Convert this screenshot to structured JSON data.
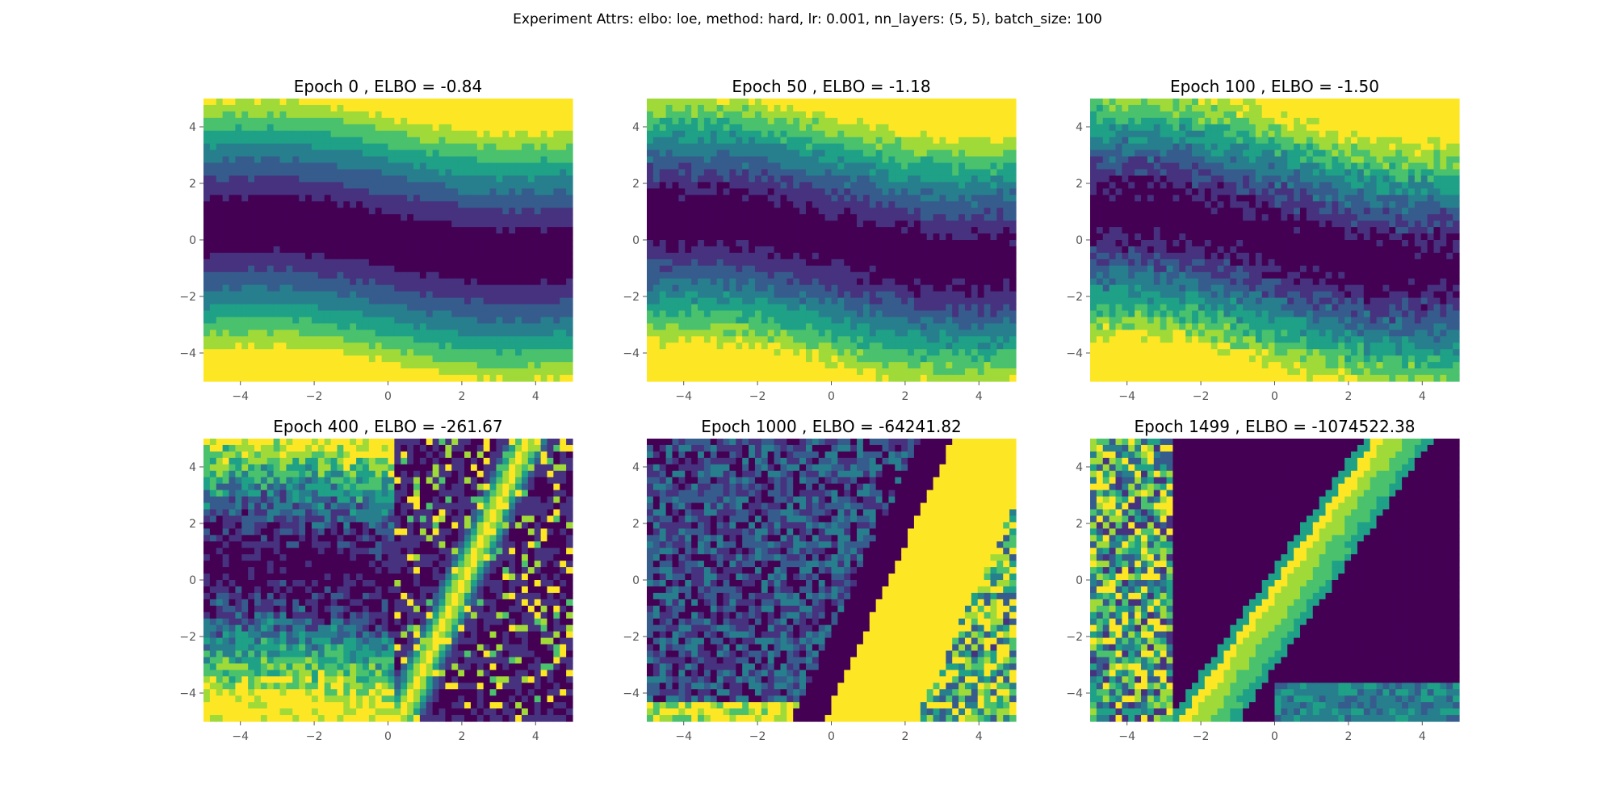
{
  "figure": {
    "suptitle": "Experiment Attrs: elbo: loe, method: hard, lr: 0.001, nn_layers: (5, 5), batch_size: 100"
  },
  "colormap": {
    "name": "viridis",
    "colors": [
      "#440154",
      "#46327e",
      "#365c8d",
      "#277f8e",
      "#1fa187",
      "#4ac16d",
      "#a0da39",
      "#fde725"
    ]
  },
  "chart_data": [
    {
      "type": "contour",
      "title": "Epoch 0 , ELBO = -0.84",
      "xlim": [
        -5,
        5
      ],
      "ylim": [
        -5,
        5
      ],
      "xticks": [
        -4,
        -2,
        0,
        2,
        4
      ],
      "yticks": [
        -4,
        -2,
        0,
        2,
        4
      ],
      "xticklabels": [
        "−4",
        "−2",
        "0",
        "2",
        "4"
      ],
      "yticklabels": [
        "−4",
        "−2",
        "0",
        "2",
        "4"
      ],
      "epoch": 0,
      "elbo": -0.84,
      "pattern": "smooth",
      "noise": 0.02,
      "band_shift": 0.0
    },
    {
      "type": "contour",
      "title": "Epoch 50 , ELBO = -1.18",
      "xlim": [
        -5,
        5
      ],
      "ylim": [
        -5,
        5
      ],
      "xticks": [
        -4,
        -2,
        0,
        2,
        4
      ],
      "yticks": [
        -4,
        -2,
        0,
        2,
        4
      ],
      "xticklabels": [
        "−4",
        "−2",
        "0",
        "2",
        "4"
      ],
      "yticklabels": [
        "−4",
        "−2",
        "0",
        "2",
        "4"
      ],
      "epoch": 50,
      "elbo": -1.18,
      "pattern": "smooth",
      "noise": 0.06,
      "band_shift": 0.05
    },
    {
      "type": "contour",
      "title": "Epoch 100 , ELBO = -1.50",
      "xlim": [
        -5,
        5
      ],
      "ylim": [
        -5,
        5
      ],
      "xticks": [
        -4,
        -2,
        0,
        2,
        4
      ],
      "yticks": [
        -4,
        -2,
        0,
        2,
        4
      ],
      "xticklabels": [
        "−4",
        "−2",
        "0",
        "2",
        "4"
      ],
      "yticklabels": [
        "−4",
        "−2",
        "0",
        "2",
        "4"
      ],
      "epoch": 100,
      "elbo": -1.5,
      "pattern": "smooth",
      "noise": 0.1,
      "band_shift": 0.1
    },
    {
      "type": "contour",
      "title": "Epoch 400 , ELBO = -261.67",
      "xlim": [
        -5,
        5
      ],
      "ylim": [
        -5,
        5
      ],
      "xticks": [
        -4,
        -2,
        0,
        2,
        4
      ],
      "yticks": [
        -4,
        -2,
        0,
        2,
        4
      ],
      "xticklabels": [
        "−4",
        "−2",
        "0",
        "2",
        "4"
      ],
      "yticklabels": [
        "−4",
        "−2",
        "0",
        "2",
        "4"
      ],
      "epoch": 400,
      "elbo": -261.67,
      "pattern": "speckle",
      "noise": 0.2,
      "band_shift": 0.0
    },
    {
      "type": "contour",
      "title": "Epoch 1000 , ELBO = -64241.82",
      "xlim": [
        -5,
        5
      ],
      "ylim": [
        -5,
        5
      ],
      "xticks": [
        -4,
        -2,
        0,
        2,
        4
      ],
      "yticks": [
        -4,
        -2,
        0,
        2,
        4
      ],
      "xticklabels": [
        "−4",
        "−2",
        "0",
        "2",
        "4"
      ],
      "yticklabels": [
        "−4",
        "−2",
        "0",
        "2",
        "4"
      ],
      "epoch": 1000,
      "elbo": -64241.82,
      "pattern": "wedge",
      "noise": 0.15,
      "band_shift": 0.0
    },
    {
      "type": "contour",
      "title": "Epoch 1499 , ELBO = -1074522.38",
      "xlim": [
        -5,
        5
      ],
      "ylim": [
        -5,
        5
      ],
      "xticks": [
        -4,
        -2,
        0,
        2,
        4
      ],
      "yticks": [
        -4,
        -2,
        0,
        2,
        4
      ],
      "xticklabels": [
        "−4",
        "−2",
        "0",
        "2",
        "4"
      ],
      "yticklabels": [
        "−4",
        "−2",
        "0",
        "2",
        "4"
      ],
      "epoch": 1499,
      "elbo": -1074522.38,
      "pattern": "ridge",
      "noise": 0.12,
      "band_shift": 0.0
    }
  ]
}
